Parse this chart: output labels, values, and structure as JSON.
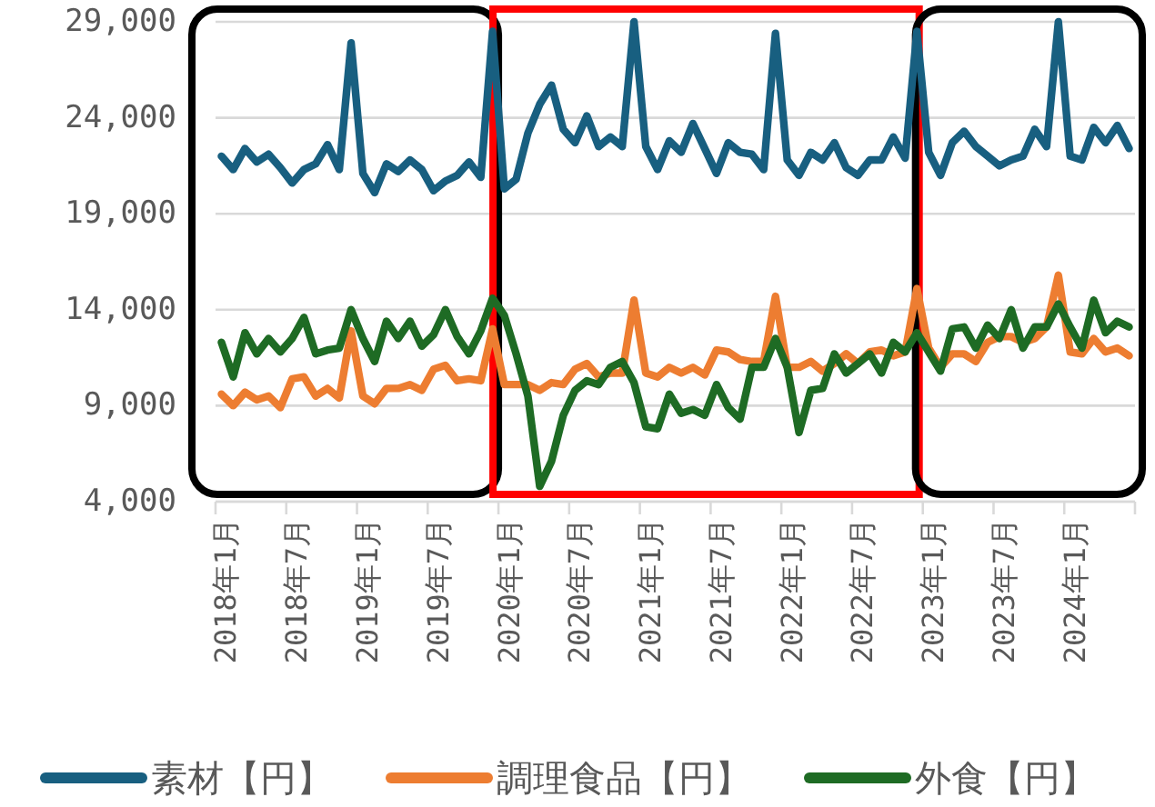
{
  "chart_data": {
    "type": "line",
    "categories": [
      "2018年1月",
      null,
      null,
      null,
      null,
      null,
      "2018年7月",
      null,
      null,
      null,
      null,
      null,
      "2019年1月",
      null,
      null,
      null,
      null,
      null,
      "2019年7月",
      null,
      null,
      null,
      null,
      null,
      "2020年1月",
      null,
      null,
      null,
      null,
      null,
      "2020年7月",
      null,
      null,
      null,
      null,
      null,
      "2021年1月",
      null,
      null,
      null,
      null,
      null,
      "2021年7月",
      null,
      null,
      null,
      null,
      null,
      "2022年1月",
      null,
      null,
      null,
      null,
      null,
      "2022年7月",
      null,
      null,
      null,
      null,
      null,
      "2023年1月",
      null,
      null,
      null,
      null,
      null,
      "2023年7月",
      null,
      null,
      null,
      null,
      null,
      "2024年1月",
      null,
      null,
      null,
      null,
      null
    ],
    "series": [
      {
        "name": "素材【円】",
        "color": "#185f80",
        "values": [
          22000,
          21300,
          22400,
          21700,
          22100,
          21400,
          20600,
          21300,
          21600,
          22600,
          21300,
          27900,
          21100,
          20100,
          21600,
          21200,
          21800,
          21300,
          20200,
          20700,
          21000,
          21700,
          20900,
          28500,
          20300,
          20800,
          23200,
          24700,
          25700,
          23400,
          22700,
          24100,
          22500,
          23000,
          22500,
          29000,
          22500,
          21300,
          22800,
          22200,
          23700,
          22400,
          21100,
          22700,
          22200,
          22100,
          21300,
          28400,
          21800,
          21000,
          22200,
          21800,
          22700,
          21400,
          21000,
          21800,
          21800,
          23000,
          21900,
          28500,
          22200,
          21000,
          22700,
          23300,
          22500,
          22000,
          21500,
          21800,
          22000,
          23400,
          22500,
          29000,
          22000,
          21800,
          23500,
          22700,
          23600,
          22400
        ]
      },
      {
        "name": "調理食品【円】",
        "color": "#ed7d31",
        "values": [
          9600,
          9000,
          9700,
          9300,
          9500,
          8900,
          10400,
          10500,
          9500,
          9900,
          9400,
          12900,
          9500,
          9100,
          9900,
          9900,
          10100,
          9800,
          10900,
          11100,
          10300,
          10400,
          10300,
          13000,
          10100,
          10100,
          10100,
          9800,
          10200,
          10100,
          10900,
          11200,
          10500,
          10700,
          10700,
          14500,
          10700,
          10500,
          11000,
          10700,
          11000,
          10600,
          11900,
          11800,
          11400,
          11300,
          11300,
          14700,
          11000,
          11000,
          11300,
          10800,
          11200,
          11700,
          11200,
          11800,
          11900,
          11600,
          11800,
          15100,
          12000,
          11000,
          11700,
          11700,
          11300,
          12300,
          12600,
          12600,
          12300,
          12500,
          13100,
          15800,
          11800,
          11700,
          12500,
          11800,
          12000,
          11600
        ]
      },
      {
        "name": "外食【円】",
        "color": "#1e6b24",
        "values": [
          12300,
          10500,
          12800,
          11700,
          12500,
          11800,
          12500,
          13600,
          11700,
          11900,
          12000,
          14000,
          12500,
          11300,
          13400,
          12500,
          13400,
          12100,
          12700,
          14000,
          12600,
          11700,
          12900,
          14600,
          13700,
          11700,
          9500,
          4800,
          6100,
          8500,
          9800,
          10300,
          10100,
          11000,
          11300,
          10200,
          7900,
          7800,
          9600,
          8600,
          8800,
          8500,
          10100,
          8900,
          8300,
          11000,
          11000,
          12500,
          11000,
          7600,
          9800,
          9900,
          11700,
          10700,
          11200,
          11700,
          10700,
          12300,
          11800,
          12800,
          11800,
          10800,
          13000,
          13100,
          12000,
          13200,
          12500,
          14000,
          12000,
          13100,
          13100,
          14300,
          13100,
          12000,
          14500,
          12800,
          13400,
          13100
        ]
      }
    ],
    "ylim": [
      4000,
      29000
    ],
    "yticks": [
      {
        "value": 4000,
        "label": "4,000"
      },
      {
        "value": 9000,
        "label": "9,000"
      },
      {
        "value": 14000,
        "label": "14,000"
      },
      {
        "value": 19000,
        "label": "19,000"
      },
      {
        "value": 24000,
        "label": "24,000"
      },
      {
        "value": 29000,
        "label": "29,000"
      }
    ],
    "grid": "y",
    "legend": "bottom",
    "marker": "none",
    "line_style": "solid"
  }
}
